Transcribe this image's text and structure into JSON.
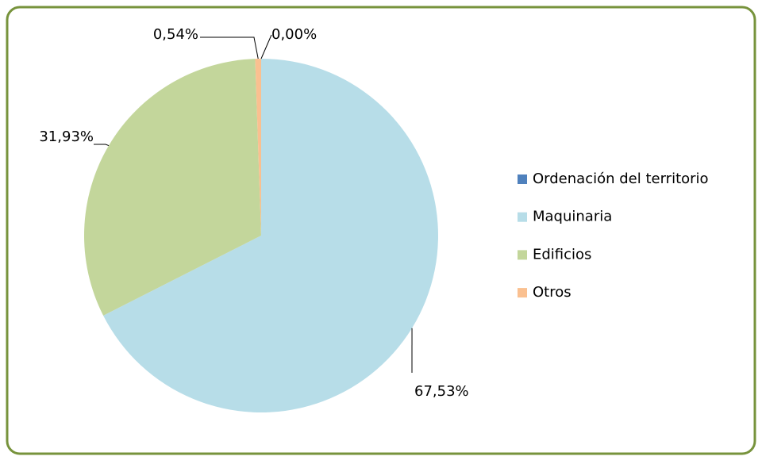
{
  "chart_data": {
    "type": "pie",
    "categories": [
      "Ordenación del territorio",
      "Maquinaria",
      "Edificios",
      "Otros"
    ],
    "values": [
      0.0,
      67.53,
      31.93,
      0.54
    ],
    "value_labels": [
      "0,00%",
      "67,53%",
      "31,93%",
      "0,54%"
    ],
    "colors": [
      "#4f81bd",
      "#b7dde8",
      "#c3d69b",
      "#fac090"
    ],
    "legend": "right"
  }
}
